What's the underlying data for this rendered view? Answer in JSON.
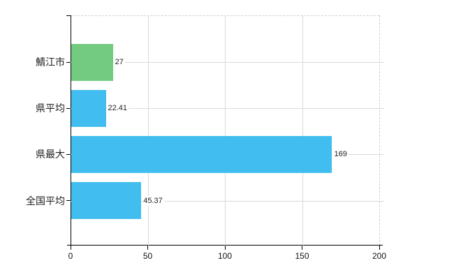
{
  "chart_data": {
    "type": "bar",
    "orientation": "horizontal",
    "title": "",
    "xlabel": "",
    "ylabel": "",
    "categories": [
      "鯖江市",
      "県平均",
      "県最大",
      "全国平均"
    ],
    "values": [
      27,
      22.41,
      169,
      45.37
    ],
    "value_labels": [
      "27",
      "22.41",
      "169",
      "45.37"
    ],
    "bar_colors": [
      "#72cb7e",
      "#41beef",
      "#41beef",
      "#41beef"
    ],
    "xlim": [
      0,
      200
    ],
    "x_ticks": [
      0,
      50,
      100,
      150,
      200
    ],
    "grid": true,
    "legend": false
  },
  "colors": {
    "background": "#ffffff",
    "axis": "#000000",
    "gridline": "#d9d9d9",
    "dashed_border": "#cfcfcf",
    "text": "#222222",
    "highlight_bar": "#72cb7e",
    "default_bar": "#41beef"
  }
}
